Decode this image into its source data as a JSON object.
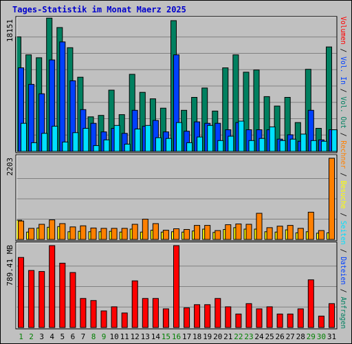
{
  "chart_data": {
    "type": "bar",
    "title": "Tages-Statistik im Monat Maerz 2025",
    "categories": [
      "1",
      "2",
      "3",
      "4",
      "5",
      "6",
      "7",
      "8",
      "9",
      "10",
      "11",
      "12",
      "13",
      "14",
      "15",
      "16",
      "17",
      "18",
      "19",
      "20",
      "21",
      "22",
      "23",
      "24",
      "25",
      "26",
      "27",
      "28",
      "29",
      "30",
      "31"
    ],
    "weekend_days": [
      "1",
      "2",
      "8",
      "9",
      "15",
      "16",
      "22",
      "23",
      "29",
      "30"
    ],
    "colors": {
      "anfragen": "#008060",
      "dateien": "#0040ff",
      "seiten": "#00e0ff",
      "besuche": "#ffff00",
      "rechner": "#ff8000",
      "volumen": "#ff0000",
      "weekday_label": "#000000",
      "weekend_label": "#008000",
      "background": "#c0c0c0",
      "title": "#0000cc"
    },
    "panels": [
      {
        "id": "hits",
        "scale_label": "18151",
        "ymax": 18151,
        "series": [
          {
            "key": "anfragen",
            "name": "Anfragen",
            "values": [
              15900,
              13400,
              13000,
              18500,
              17200,
              14400,
              10300,
              4800,
              5000,
              8500,
              5100,
              10700,
              8200,
              7300,
              6000,
              18151,
              5700,
              7500,
              8800,
              5600,
              11600,
              13400,
              11000,
              11300,
              7600,
              6300,
              7500,
              4000,
              11400,
              3200,
              14500
            ]
          },
          {
            "key": "dateien",
            "name": "Dateien",
            "values": [
              11600,
              9300,
              8000,
              12700,
              15200,
              9800,
              5800,
              3900,
              2700,
              3200,
              2500,
              5700,
              3500,
              4300,
              2700,
              13400,
              2800,
              4100,
              3900,
              3900,
              3000,
              4000,
              3000,
              3000,
              3000,
              1700,
              2300,
              1400,
              5700,
              1600,
              3000
            ]
          },
          {
            "key": "seiten",
            "name": "Seiten",
            "values": [
              3900,
              1200,
              2500,
              3500,
              1300,
              2600,
              3200,
              800,
              1600,
              3600,
              1000,
              3100,
              3600,
              1900,
              1800,
              4000,
              1200,
              2000,
              3600,
              1500,
              2100,
              4200,
              1500,
              1800,
              3400,
              1500,
              1700,
              2400,
              1500,
              1400,
              3000
            ]
          }
        ]
      },
      {
        "id": "visits",
        "scale_label": "2203",
        "ymax": 2203,
        "series": [
          {
            "key": "besuche",
            "name": "Besuche",
            "values": [
              520,
              200,
              310,
              330,
              350,
              210,
              220,
              210,
              210,
              220,
              200,
              280,
              200,
              250,
              200,
              210,
              200,
              230,
              280,
              190,
              270,
              320,
              280,
              280,
              210,
              200,
              260,
              180,
              210,
              170,
              180
            ]
          },
          {
            "key": "rechner",
            "name": "Rechner",
            "values": [
              500,
              300,
              410,
              530,
              430,
              340,
              370,
              310,
              300,
              300,
              300,
              410,
              550,
              430,
              250,
              290,
              270,
              380,
              380,
              240,
              400,
              420,
              410,
              710,
              320,
              360,
              380,
              300,
              740,
              240,
              2203
            ]
          }
        ]
      },
      {
        "id": "volume",
        "scale_label": "789.41 MB",
        "ymax": 789.41,
        "series": [
          {
            "key": "volumen",
            "name": "Volumen",
            "values": [
              675,
              550,
              540,
              789.41,
              620,
              530,
              280,
              260,
              160,
              200,
              140,
              450,
              280,
              280,
              180,
              789.41,
              190,
              220,
              220,
              280,
              200,
              130,
              230,
              180,
              200,
              130,
              130,
              180,
              460,
              110,
              230
            ]
          }
        ]
      }
    ],
    "side_legend": [
      {
        "text": "Anfragen",
        "color": "#008060"
      },
      {
        "text": "Dateien",
        "color": "#0040ff"
      },
      {
        "text": "Seiten",
        "color": "#00e0ff"
      },
      {
        "text": "Besuche",
        "color": "#ffff00"
      },
      {
        "text": "Rechner",
        "color": "#ff8000"
      },
      {
        "text": "Vol. Out",
        "color": "#008060"
      },
      {
        "text": "Vol. In",
        "color": "#0040ff"
      },
      {
        "text": "Volumen",
        "color": "#ff0000"
      }
    ],
    "side_separator": "/"
  }
}
